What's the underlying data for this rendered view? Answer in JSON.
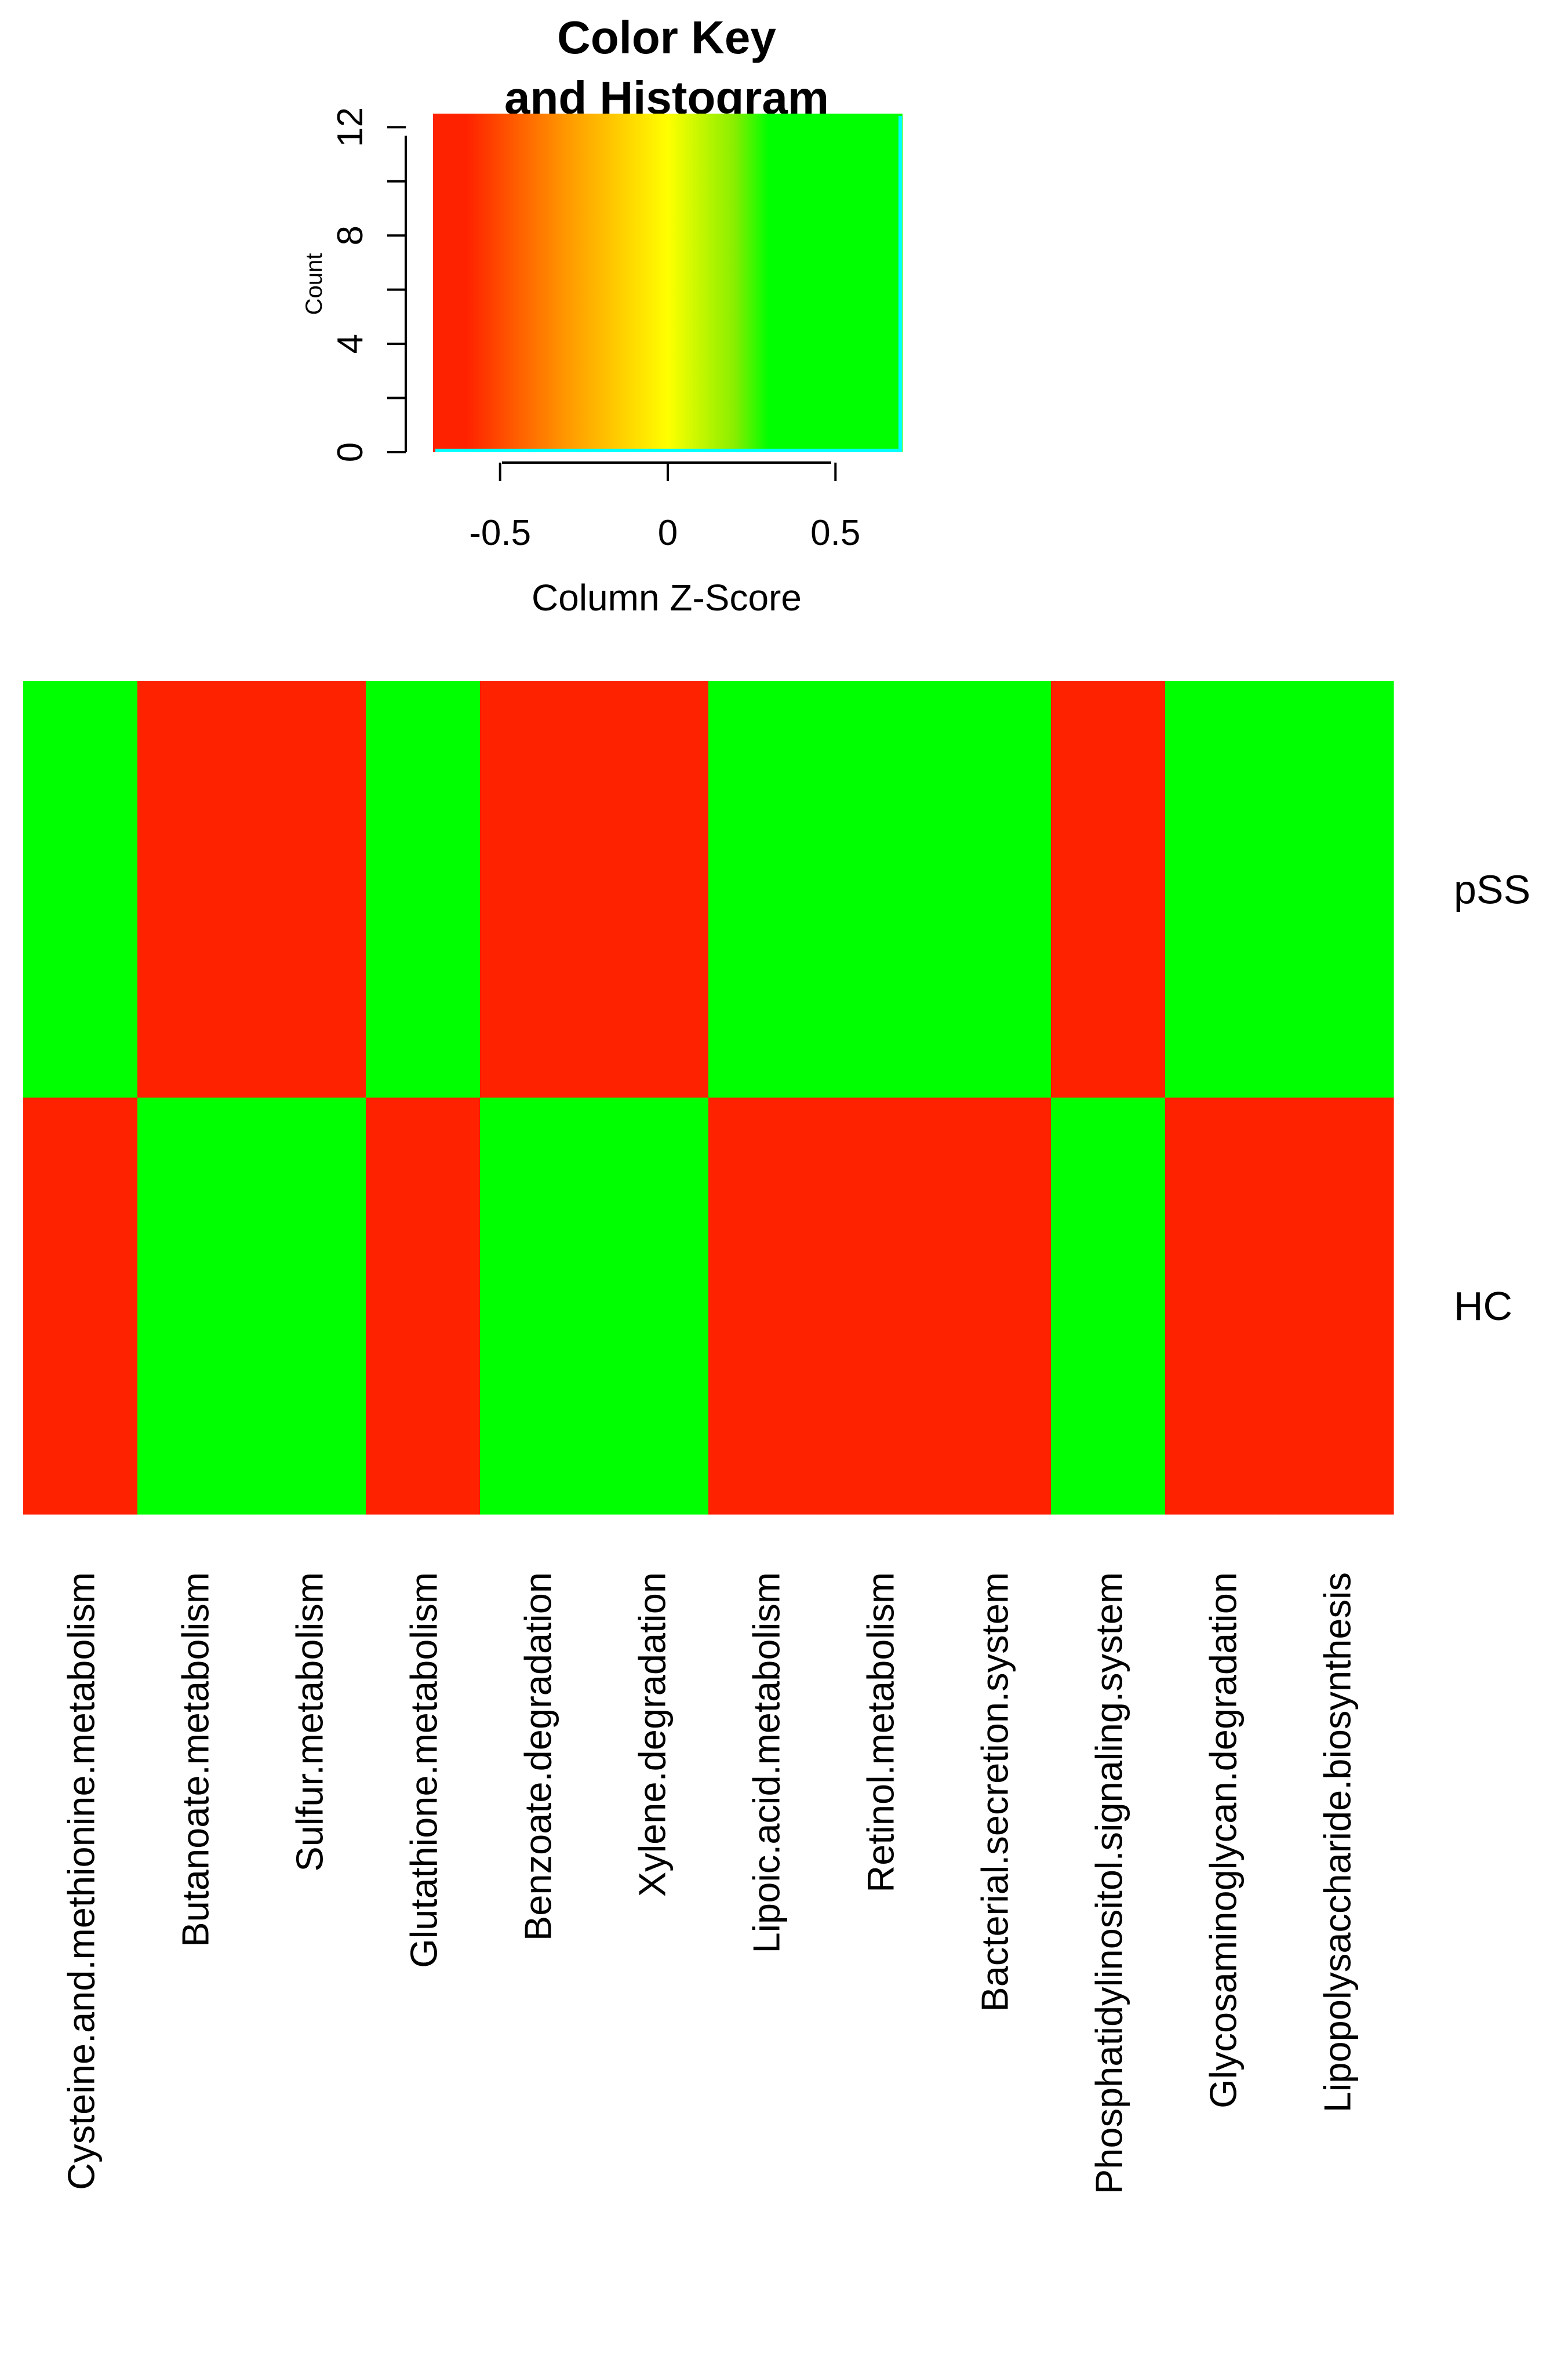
{
  "chart_data": [
    {
      "type": "histogram",
      "role": "color-key",
      "title_lines": [
        "Color Key",
        "and Histogram"
      ],
      "xlabel": "Column Z-Score",
      "ylabel": "Count",
      "x_ticks": [
        -0.5,
        0,
        0.5
      ],
      "x_tick_labels": [
        "-0.5",
        "0",
        "0.5"
      ],
      "xlim": [
        -0.7,
        0.7
      ],
      "y_ticks": [
        0,
        4,
        8,
        12
      ],
      "y_tick_labels": [
        "0",
        "4",
        "8",
        "12"
      ],
      "ylim": [
        0,
        12.5
      ],
      "color_stops": [
        {
          "z": -0.7,
          "color": "#ff2200"
        },
        {
          "z": -0.6,
          "color": "#ff2200"
        },
        {
          "z": -0.3,
          "color": "#ff9900"
        },
        {
          "z": 0.0,
          "color": "#ffff00"
        },
        {
          "z": 0.2,
          "color": "#88ee00"
        },
        {
          "z": 0.3,
          "color": "#00ff00"
        },
        {
          "z": 0.7,
          "color": "#00ff00"
        }
      ],
      "histogram_line_color": "#00ffff"
    },
    {
      "type": "heatmap",
      "rows": [
        "pSS",
        "HC"
      ],
      "columns": [
        "Cysteine.and.methionine.metabolism",
        "Butanoate.metabolism",
        "Sulfur.metabolism",
        "Glutathione.metabolism",
        "Benzoate.degradation",
        "Xylene.degradation",
        "Lipoic.acid.metabolism",
        "Retinol.metabolism",
        "Bacterial.secretion.system",
        "Phosphatidylinositol.signaling.system",
        "Glycosaminoglycan.degradation",
        "Lipopolysaccharide.biosynthesis"
      ],
      "values": [
        [
          0.707,
          -0.707,
          -0.707,
          0.707,
          -0.707,
          -0.707,
          0.707,
          0.707,
          0.707,
          -0.707,
          0.707,
          0.707
        ],
        [
          -0.707,
          0.707,
          0.707,
          -0.707,
          0.707,
          0.707,
          -0.707,
          -0.707,
          -0.707,
          0.707,
          -0.707,
          -0.707
        ]
      ],
      "colors": {
        "low": "#ff2200",
        "high": "#00ff00"
      }
    }
  ]
}
